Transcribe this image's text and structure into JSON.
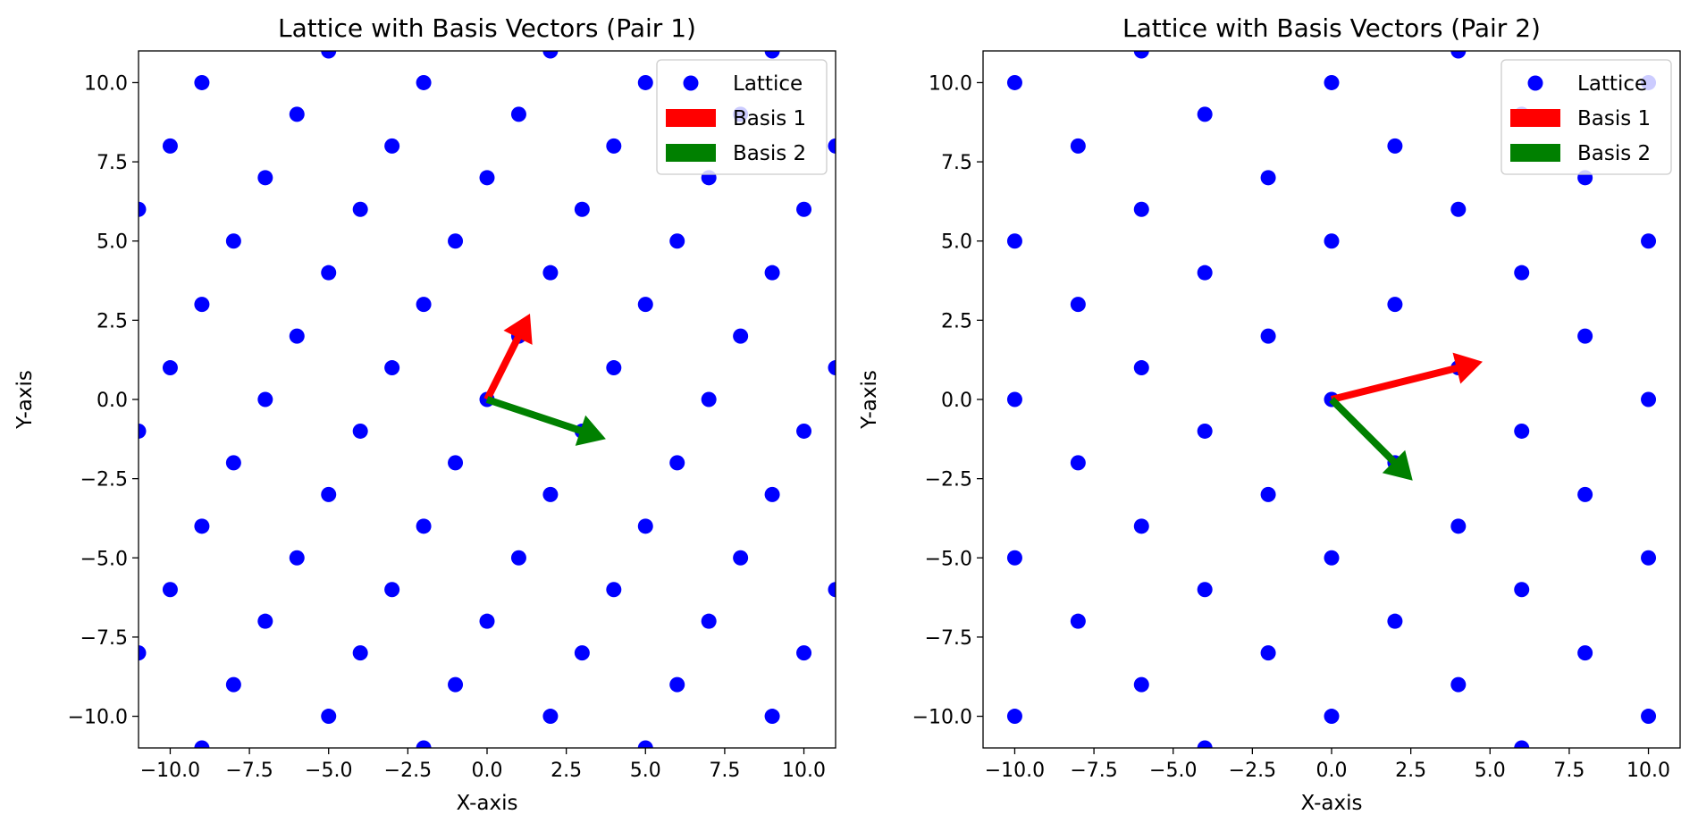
{
  "chart_data": [
    {
      "type": "scatter",
      "title": "Lattice with Basis Vectors (Pair 1)",
      "xlabel": "X-axis",
      "ylabel": "Y-axis",
      "xlim": [
        -11,
        11
      ],
      "ylim": [
        -11,
        11
      ],
      "xticks": [
        -10,
        -7.5,
        -5,
        -2.5,
        0,
        2.5,
        5,
        7.5,
        10
      ],
      "xtick_labels": [
        "−10.0",
        "−7.5",
        "−5.0",
        "−2.5",
        "0.0",
        "2.5",
        "5.0",
        "7.5",
        "10.0"
      ],
      "yticks": [
        10,
        7.5,
        5,
        2.5,
        0,
        -2.5,
        -5,
        -7.5,
        -10
      ],
      "ytick_labels": [
        "10.0",
        "7.5",
        "5.0",
        "2.5",
        "0.0",
        "−2.5",
        "−5.0",
        "−7.5",
        "−10.0"
      ],
      "grid": false,
      "legend_position": "top-right",
      "series": [
        {
          "name": "Lattice",
          "color": "#0000ff",
          "generator": "lattice",
          "basis": [
            [
              1,
              2
            ],
            [
              3,
              -1
            ]
          ],
          "index_range": [
            -12,
            12
          ]
        }
      ],
      "vectors": [
        {
          "name": "Basis 1",
          "color": "#ff0000",
          "origin": [
            0,
            0
          ],
          "vector": [
            1,
            2
          ]
        },
        {
          "name": "Basis 2",
          "color": "#008000",
          "origin": [
            0,
            0
          ],
          "vector": [
            3,
            -1
          ]
        }
      ],
      "legend": [
        "Lattice",
        "Basis 1",
        "Basis 2"
      ]
    },
    {
      "type": "scatter",
      "title": "Lattice with Basis Vectors (Pair 2)",
      "xlabel": "X-axis",
      "ylabel": "Y-axis",
      "xlim": [
        -11,
        11
      ],
      "ylim": [
        -11,
        11
      ],
      "xticks": [
        -10,
        -7.5,
        -5,
        -2.5,
        0,
        2.5,
        5,
        7.5,
        10
      ],
      "xtick_labels": [
        "−10.0",
        "−7.5",
        "−5.0",
        "−2.5",
        "0.0",
        "2.5",
        "5.0",
        "7.5",
        "10.0"
      ],
      "yticks": [
        10,
        7.5,
        5,
        2.5,
        0,
        -2.5,
        -5,
        -7.5,
        -10
      ],
      "ytick_labels": [
        "10.0",
        "7.5",
        "5.0",
        "2.5",
        "0.0",
        "−2.5",
        "−5.0",
        "−7.5",
        "−10.0"
      ],
      "grid": false,
      "legend_position": "top-right",
      "series": [
        {
          "name": "Lattice",
          "color": "#0000ff",
          "generator": "lattice",
          "basis": [
            [
              4,
              1
            ],
            [
              2,
              -2
            ]
          ],
          "index_range": [
            -12,
            12
          ]
        }
      ],
      "vectors": [
        {
          "name": "Basis 1",
          "color": "#ff0000",
          "origin": [
            0,
            0
          ],
          "vector": [
            4,
            1
          ]
        },
        {
          "name": "Basis 2",
          "color": "#008000",
          "origin": [
            0,
            0
          ],
          "vector": [
            2,
            -2
          ]
        }
      ],
      "legend": [
        "Lattice",
        "Basis 1",
        "Basis 2"
      ]
    }
  ]
}
